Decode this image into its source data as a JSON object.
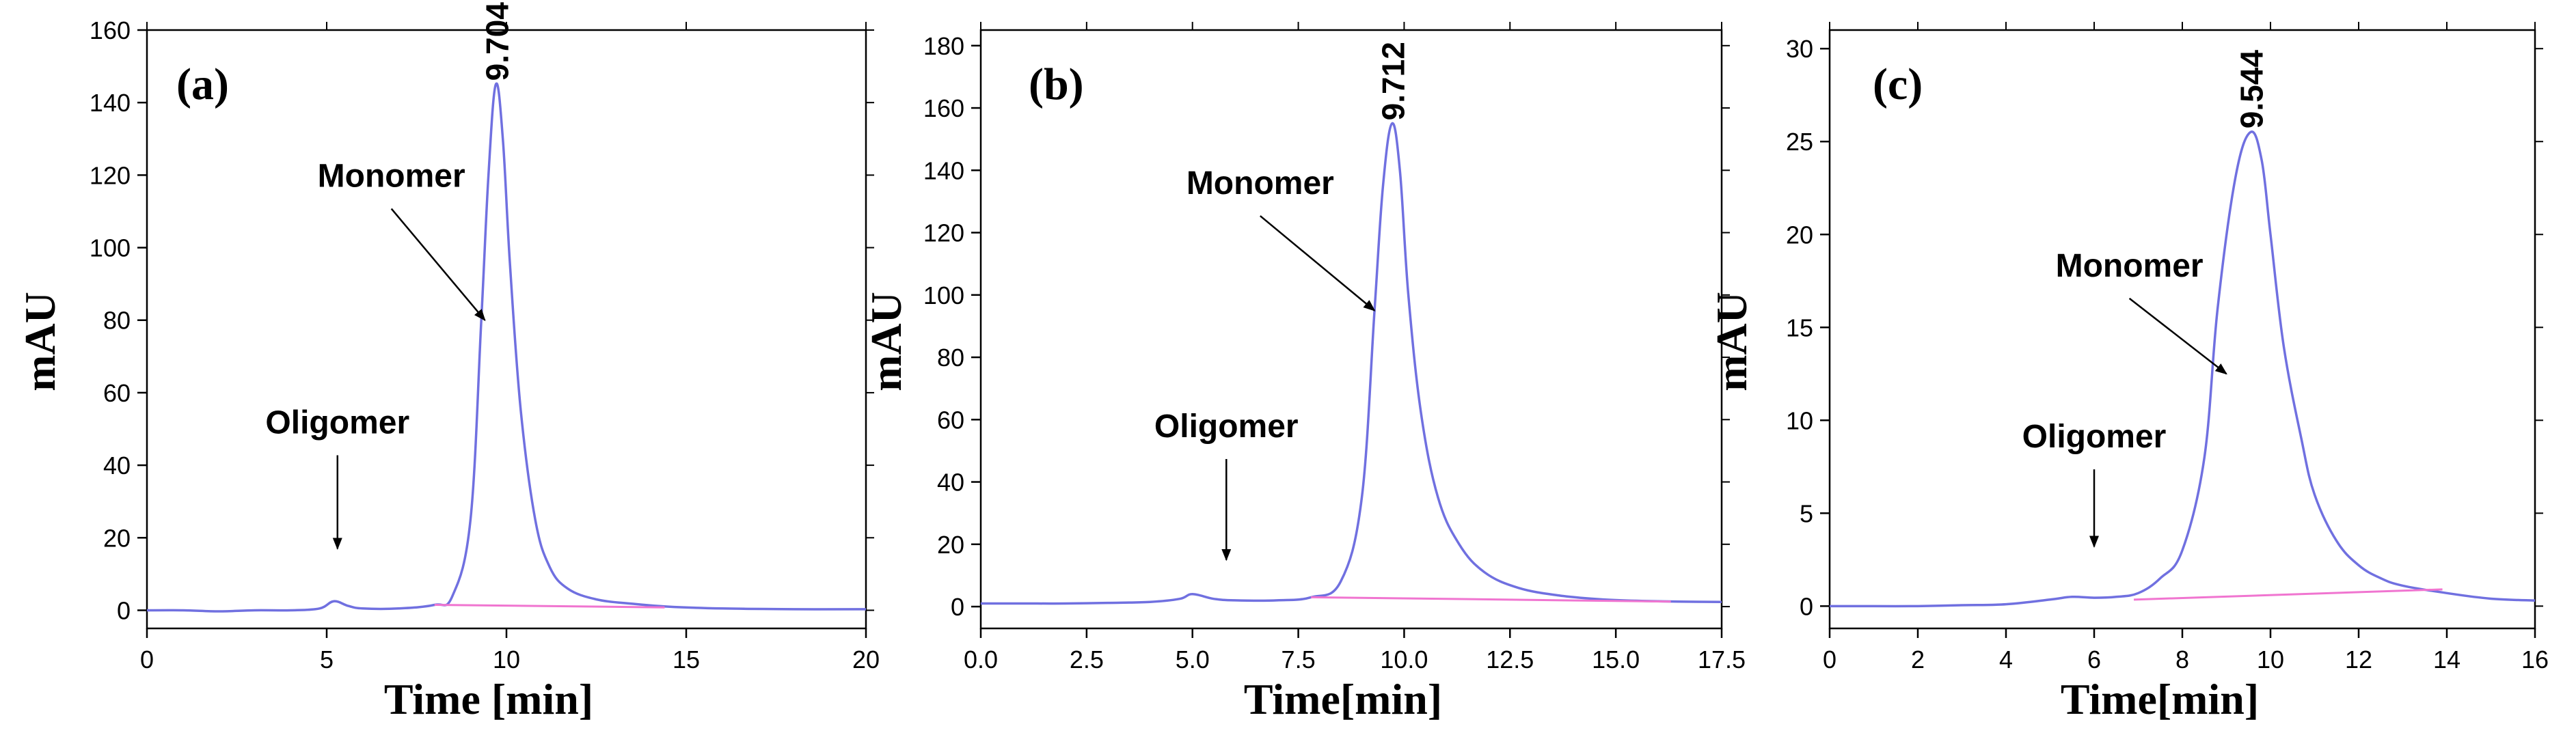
{
  "chart_data": [
    {
      "type": "line",
      "panel_label": "(a)",
      "xlabel": "Time [min]",
      "ylabel": "mAU",
      "xlim": [
        0,
        20
      ],
      "ylim": [
        -5,
        160
      ],
      "xticks": [
        0,
        5,
        10,
        15,
        20
      ],
      "yticks": [
        0,
        20,
        40,
        60,
        80,
        100,
        120,
        140,
        160
      ],
      "xtick_labels": [
        "0",
        "5",
        "10",
        "15",
        "20"
      ],
      "ytick_labels": [
        "0",
        "20",
        "40",
        "60",
        "80",
        "100",
        "120",
        "140",
        "160"
      ],
      "series": [
        {
          "name": "chromatogram",
          "color": "#7070e0",
          "x": [
            0,
            1,
            2,
            3,
            4,
            4.8,
            5.2,
            5.6,
            6,
            7,
            8,
            8.5,
            9,
            9.3,
            9.5,
            9.704,
            9.9,
            10.1,
            10.4,
            10.8,
            11.2,
            11.7,
            12.5,
            13.5,
            14.5,
            16,
            18,
            20
          ],
          "y": [
            0,
            0,
            -0.3,
            0,
            0,
            0.5,
            2.5,
            1.2,
            0.5,
            0.5,
            1.5,
            4,
            25,
            80,
            120,
            145,
            130,
            95,
            55,
            25,
            12,
            6,
            3,
            1.8,
            1,
            0.5,
            0.3,
            0.3
          ]
        },
        {
          "name": "baseline",
          "color": "#f075d0",
          "x": [
            8,
            14.4
          ],
          "y": [
            1.5,
            0.8
          ]
        }
      ],
      "annotations": [
        {
          "text": "Monomer",
          "xy": [
            9.4,
            80
          ],
          "xytext": [
            6.8,
            113
          ]
        },
        {
          "text": "Oligomer",
          "xy": [
            5.3,
            17
          ],
          "xytext": [
            5.3,
            45
          ]
        }
      ],
      "peak_label": {
        "text": "9.704",
        "x": 9.704,
        "y": 146
      }
    },
    {
      "type": "line",
      "panel_label": "(b)",
      "xlabel": "Time[min]",
      "ylabel": "mAU",
      "xlim": [
        0,
        17.5
      ],
      "ylim": [
        -7,
        185
      ],
      "xticks": [
        0,
        2.5,
        5,
        7.5,
        10,
        12.5,
        15,
        17.5
      ],
      "yticks": [
        0,
        20,
        40,
        60,
        80,
        100,
        120,
        140,
        160,
        180
      ],
      "xtick_labels": [
        "0.0",
        "2.5",
        "5.0",
        "7.5",
        "10.0",
        "12.5",
        "15.0",
        "17.5"
      ],
      "ytick_labels": [
        "0",
        "20",
        "40",
        "60",
        "80",
        "100",
        "120",
        "140",
        "160",
        "180"
      ],
      "series": [
        {
          "name": "chromatogram",
          "color": "#7070e0",
          "x": [
            0,
            1,
            2,
            3,
            4,
            4.7,
            5,
            5.5,
            6,
            7,
            7.8,
            8.5,
            9,
            9.3,
            9.5,
            9.712,
            9.9,
            10.1,
            10.4,
            10.8,
            11.3,
            11.9,
            12.7,
            13.7,
            14.7,
            15.7,
            16.5,
            17.5
          ],
          "y": [
            1,
            1,
            1,
            1.2,
            1.5,
            2.5,
            4,
            2.5,
            2,
            2,
            3,
            8,
            35,
            95,
            135,
            155,
            140,
            100,
            62,
            35,
            20,
            11,
            6,
            3.5,
            2.3,
            1.8,
            1.6,
            1.5
          ]
        },
        {
          "name": "baseline",
          "color": "#f075d0",
          "x": [
            7.8,
            16.3
          ],
          "y": [
            3,
            1.6
          ]
        }
      ],
      "annotations": [
        {
          "text": "Monomer",
          "xy": [
            9.3,
            95
          ],
          "xytext": [
            6.6,
            128
          ]
        },
        {
          "text": "Oligomer",
          "xy": [
            5.8,
            15
          ],
          "xytext": [
            5.8,
            50
          ]
        }
      ],
      "peak_label": {
        "text": "9.712",
        "x": 9.712,
        "y": 156
      }
    },
    {
      "type": "line",
      "panel_label": "(c)",
      "xlabel": "Time[min]",
      "ylabel": "mAU",
      "xlim": [
        0,
        16
      ],
      "ylim": [
        -1.2,
        31
      ],
      "xticks": [
        0,
        2,
        4,
        6,
        8,
        10,
        12,
        14,
        16
      ],
      "yticks": [
        0,
        5,
        10,
        15,
        20,
        25,
        30
      ],
      "xtick_labels": [
        "0",
        "2",
        "4",
        "6",
        "8",
        "10",
        "12",
        "14",
        "16"
      ],
      "ytick_labels": [
        "0",
        "5",
        "10",
        "15",
        "20",
        "25",
        "30"
      ],
      "series": [
        {
          "name": "chromatogram",
          "color": "#7070e0",
          "x": [
            0,
            1,
            2,
            3,
            4,
            5,
            5.5,
            6,
            6.5,
            7,
            7.5,
            8,
            8.5,
            8.8,
            9.2,
            9.544,
            9.8,
            10,
            10.3,
            10.7,
            11,
            11.5,
            12,
            12.5,
            13,
            14,
            15,
            16
          ],
          "y": [
            0,
            0,
            0,
            0.05,
            0.1,
            0.35,
            0.5,
            0.45,
            0.5,
            0.7,
            1.5,
            3,
            8,
            16,
            23,
            25.5,
            24,
            20,
            14,
            9,
            6,
            3.5,
            2.2,
            1.5,
            1.1,
            0.7,
            0.4,
            0.3
          ]
        },
        {
          "name": "baseline",
          "color": "#f075d0",
          "x": [
            6.9,
            13.9
          ],
          "y": [
            0.35,
            0.9
          ]
        }
      ],
      "annotations": [
        {
          "text": "Monomer",
          "xy": [
            9.0,
            12.5
          ],
          "xytext": [
            6.8,
            17
          ]
        },
        {
          "text": "Oligomer",
          "xy": [
            6.0,
            3.2
          ],
          "xytext": [
            6.0,
            7.8
          ]
        }
      ],
      "peak_label": {
        "text": "9.544",
        "x": 9.544,
        "y": 25.7
      }
    }
  ]
}
